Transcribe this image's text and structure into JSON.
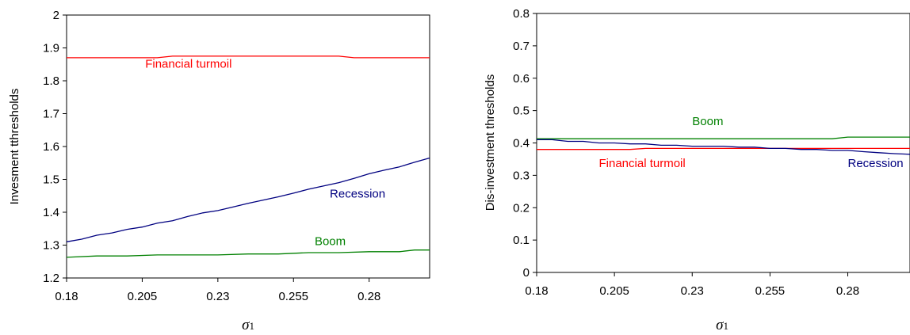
{
  "charts": [
    {
      "type": "line",
      "ylabel": "Invesment tthresholds",
      "xlabel_symbol": "σ",
      "xlabel_sub": "1",
      "xlim": [
        0.18,
        0.3
      ],
      "ylim": [
        1.2,
        2.0
      ],
      "xticks": [
        0.18,
        0.205,
        0.23,
        0.255,
        0.28
      ],
      "xtick_labels": [
        "0.18",
        "0.205",
        "0.23",
        "0.255",
        "0.28"
      ],
      "yticks": [
        1.2,
        1.3,
        1.4,
        1.5,
        1.6,
        1.7,
        1.8,
        1.9,
        2.0
      ],
      "ytick_labels": [
        "1.2",
        "1.3",
        "1.4",
        "1.5",
        "1.6",
        "1.7",
        "1.8",
        "1.9",
        "2"
      ],
      "series": [
        {
          "key": "financial",
          "color": "#ff0000",
          "x": [
            0.18,
            0.19,
            0.2,
            0.21,
            0.215,
            0.22,
            0.23,
            0.24,
            0.25,
            0.26,
            0.27,
            0.275,
            0.28,
            0.29,
            0.3
          ],
          "y": [
            1.87,
            1.87,
            1.87,
            1.87,
            1.875,
            1.875,
            1.875,
            1.875,
            1.875,
            1.875,
            1.875,
            1.87,
            1.87,
            1.87,
            1.87
          ]
        },
        {
          "key": "recession",
          "color": "#000080",
          "x": [
            0.18,
            0.185,
            0.19,
            0.195,
            0.2,
            0.205,
            0.21,
            0.215,
            0.22,
            0.225,
            0.23,
            0.235,
            0.24,
            0.245,
            0.25,
            0.255,
            0.26,
            0.265,
            0.27,
            0.275,
            0.28,
            0.285,
            0.29,
            0.295,
            0.3
          ],
          "y": [
            1.31,
            1.318,
            1.33,
            1.337,
            1.348,
            1.355,
            1.367,
            1.374,
            1.387,
            1.398,
            1.405,
            1.416,
            1.427,
            1.437,
            1.447,
            1.458,
            1.47,
            1.48,
            1.49,
            1.503,
            1.517,
            1.528,
            1.538,
            1.552,
            1.565
          ]
        },
        {
          "key": "boom",
          "color": "#008000",
          "x": [
            0.18,
            0.19,
            0.2,
            0.21,
            0.22,
            0.23,
            0.24,
            0.25,
            0.26,
            0.27,
            0.28,
            0.29,
            0.295,
            0.3
          ],
          "y": [
            1.263,
            1.267,
            1.267,
            1.27,
            1.27,
            1.27,
            1.273,
            1.273,
            1.277,
            1.277,
            1.28,
            1.28,
            1.285,
            1.285
          ]
        }
      ],
      "annotations": [
        {
          "text": "Financial turmoil",
          "x": 0.206,
          "y": 1.84,
          "color": "#ff0000"
        },
        {
          "text": "Recession",
          "x": 0.267,
          "y": 1.445,
          "color": "#000080"
        },
        {
          "text": "Boom",
          "x": 0.262,
          "y": 1.3,
          "color": "#008000"
        }
      ]
    },
    {
      "type": "line",
      "ylabel": "Dis-investment thresholds",
      "xlabel_symbol": "σ",
      "xlabel_sub": "1",
      "xlim": [
        0.18,
        0.3
      ],
      "ylim": [
        0,
        0.8
      ],
      "xticks": [
        0.18,
        0.205,
        0.23,
        0.255,
        0.28
      ],
      "xtick_labels": [
        "0.18",
        "0.205",
        "0.23",
        "0.255",
        "0.28"
      ],
      "yticks": [
        0,
        0.1,
        0.2,
        0.3,
        0.4,
        0.5,
        0.6,
        0.7,
        0.8
      ],
      "ytick_labels": [
        "0",
        "0.1",
        "0.2",
        "0.3",
        "0.4",
        "0.5",
        "0.6",
        "0.7",
        "0.8"
      ],
      "series": [
        {
          "key": "boom",
          "color": "#008000",
          "x": [
            0.18,
            0.2,
            0.22,
            0.24,
            0.26,
            0.275,
            0.28,
            0.3
          ],
          "y": [
            0.413,
            0.413,
            0.413,
            0.413,
            0.413,
            0.413,
            0.418,
            0.418
          ]
        },
        {
          "key": "financial",
          "color": "#ff0000",
          "x": [
            0.18,
            0.19,
            0.2,
            0.21,
            0.215,
            0.22,
            0.23,
            0.24,
            0.25,
            0.26,
            0.27,
            0.28,
            0.29,
            0.3
          ],
          "y": [
            0.38,
            0.38,
            0.38,
            0.38,
            0.383,
            0.383,
            0.383,
            0.383,
            0.383,
            0.383,
            0.383,
            0.383,
            0.383,
            0.383
          ]
        },
        {
          "key": "recession",
          "color": "#000080",
          "x": [
            0.18,
            0.185,
            0.19,
            0.195,
            0.2,
            0.205,
            0.21,
            0.215,
            0.22,
            0.225,
            0.23,
            0.235,
            0.24,
            0.245,
            0.25,
            0.255,
            0.26,
            0.265,
            0.27,
            0.275,
            0.28,
            0.285,
            0.29,
            0.295,
            0.3
          ],
          "y": [
            0.41,
            0.41,
            0.405,
            0.405,
            0.4,
            0.4,
            0.397,
            0.397,
            0.393,
            0.393,
            0.39,
            0.39,
            0.39,
            0.387,
            0.387,
            0.383,
            0.383,
            0.38,
            0.38,
            0.377,
            0.377,
            0.373,
            0.37,
            0.367,
            0.365
          ]
        }
      ],
      "annotations": [
        {
          "text": "Boom",
          "x": 0.23,
          "y": 0.455,
          "color": "#008000"
        },
        {
          "text": "Financial turmoil",
          "x": 0.2,
          "y": 0.325,
          "color": "#ff0000"
        },
        {
          "text": "Recession",
          "x": 0.28,
          "y": 0.325,
          "color": "#000080"
        }
      ]
    }
  ]
}
